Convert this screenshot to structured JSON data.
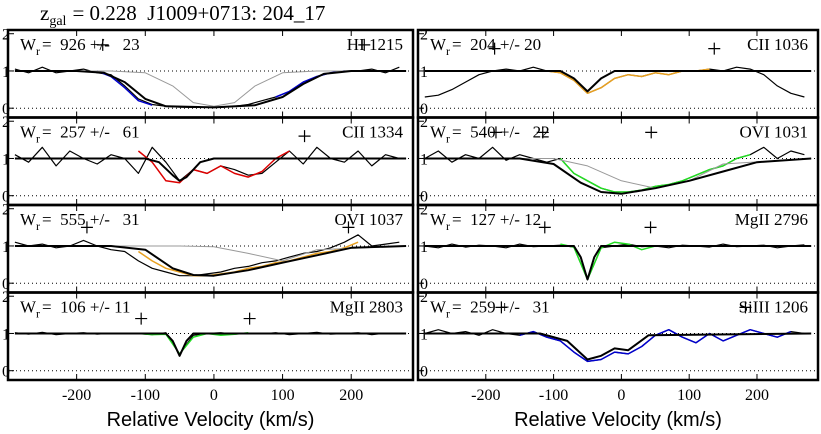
{
  "title_main": "z",
  "title_sub": "gal",
  "title_rest": "= 0.228  J1009+0713: 204_17",
  "velocity": [
    -290,
    -270,
    -250,
    -230,
    -210,
    -190,
    -170,
    -150,
    -130,
    -110,
    -90,
    -70,
    -50,
    -30,
    -10,
    10,
    30,
    50,
    70,
    90,
    110,
    130,
    150,
    170,
    190,
    210,
    230,
    250,
    270
  ],
  "chart_data": [
    {
      "type": "line",
      "label_main": "W",
      "label_sub": "r",
      "label_rest": "=  926 +/-   23",
      "ion": "HI 1215",
      "xlim": [
        -300,
        290
      ],
      "ylim": [
        -0.25,
        2.1
      ],
      "xticks": [
        -200,
        -100,
        0,
        100,
        200
      ],
      "yticks": [
        0,
        1,
        2
      ],
      "ref_lines": [
        0,
        1
      ],
      "spectrum": [
        1.05,
        0.95,
        1.1,
        0.95,
        1.0,
        1.05,
        0.95,
        0.9,
        0.6,
        0.25,
        0.1,
        0.05,
        0.03,
        0.02,
        0.03,
        0.02,
        0.05,
        0.1,
        0.2,
        0.3,
        0.45,
        0.7,
        0.85,
        0.95,
        1.0,
        1.0,
        1.05,
        0.95,
        1.1
      ],
      "highlight": {
        "color": "#0000cc",
        "x": [
          -170,
          -150,
          -130,
          -110,
          -90,
          0,
          90,
          110,
          130,
          150,
          170,
          190
        ],
        "y": [
          1.0,
          0.85,
          0.55,
          0.2,
          0.08,
          null,
          0.3,
          0.45,
          0.7,
          0.85,
          0.95,
          1.0
        ]
      },
      "fit": {
        "x": [
          -290,
          -200,
          -160,
          -130,
          -100,
          -70,
          0,
          60,
          100,
          130,
          160,
          200,
          280
        ],
        "y": [
          1,
          1,
          0.95,
          0.7,
          0.25,
          0.05,
          0.02,
          0.08,
          0.3,
          0.65,
          0.92,
          1,
          1
        ]
      },
      "component": {
        "x": [
          -290,
          -150,
          -100,
          -60,
          -30,
          0,
          30,
          60,
          100,
          150,
          280
        ],
        "y": [
          1,
          1,
          0.95,
          0.6,
          0.15,
          0.05,
          0.15,
          0.6,
          0.95,
          1,
          1
        ]
      },
      "markers": {
        "x": [
          -162,
          219
        ],
        "y": [
          1.7,
          1.7
        ]
      }
    },
    {
      "type": "line",
      "label_main": "W",
      "label_sub": "r",
      "label_rest": "=  204 +/- 20",
      "ion": "CII 1036",
      "xlim": [
        -300,
        290
      ],
      "ylim": [
        -0.25,
        2.1
      ],
      "xticks": [
        -200,
        -100,
        0,
        100,
        200
      ],
      "yticks": [
        0,
        1,
        2
      ],
      "ref_lines": [
        0,
        1
      ],
      "spectrum": [
        0.3,
        0.35,
        0.5,
        0.7,
        0.9,
        1.0,
        1.05,
        1.0,
        1.1,
        1.0,
        0.95,
        0.75,
        0.4,
        0.55,
        0.8,
        0.9,
        0.85,
        0.95,
        0.9,
        1.0,
        1.0,
        1.05,
        1.0,
        1.1,
        1.05,
        0.9,
        0.6,
        0.4,
        0.3
      ],
      "highlight": {
        "color": "#e8a020",
        "x": [
          -110,
          -90,
          -70,
          -50,
          -30,
          -10,
          10,
          30,
          50,
          70,
          90,
          110,
          130
        ],
        "y": [
          1.0,
          0.95,
          0.75,
          0.4,
          0.55,
          0.8,
          0.9,
          0.85,
          0.95,
          0.9,
          1.0,
          1.0,
          1.05
        ]
      },
      "fit": {
        "x": [
          -290,
          -90,
          -70,
          -50,
          -30,
          -10,
          280
        ],
        "y": [
          1,
          1,
          0.8,
          0.45,
          0.8,
          1,
          1
        ]
      },
      "markers": {
        "x": [
          -187,
          137
        ],
        "y": [
          1.6,
          1.6
        ]
      }
    },
    {
      "type": "line",
      "label_main": "W",
      "label_sub": "r",
      "label_rest": "=  257 +/-   61",
      "ion": "CII 1334",
      "xlim": [
        -300,
        290
      ],
      "ylim": [
        -0.25,
        2.1
      ],
      "xticks": [
        -200,
        -100,
        0,
        100,
        200
      ],
      "yticks": [
        0,
        1,
        2
      ],
      "ref_lines": [
        0,
        1
      ],
      "spectrum": [
        1.1,
        0.9,
        1.3,
        0.8,
        1.2,
        1.0,
        0.85,
        1.1,
        1.0,
        0.6,
        1.3,
        0.9,
        0.4,
        0.7,
        0.6,
        0.8,
        0.7,
        0.55,
        0.6,
        0.9,
        1.2,
        0.85,
        1.3,
        1.0,
        0.9,
        1.2,
        0.8,
        1.1,
        1.0
      ],
      "highlight": {
        "color": "#dd0000",
        "x": [
          -110,
          -90,
          -70,
          -50,
          -30,
          -10,
          10,
          30,
          50,
          70,
          90,
          110
        ],
        "y": [
          1.2,
          0.9,
          0.4,
          0.35,
          0.7,
          0.6,
          0.8,
          0.6,
          0.5,
          0.65,
          1.0,
          1.2
        ]
      },
      "fit": {
        "x": [
          -290,
          -100,
          -80,
          -60,
          -50,
          -40,
          -20,
          0,
          280
        ],
        "y": [
          1,
          1,
          0.9,
          0.55,
          0.4,
          0.5,
          0.9,
          1,
          1
        ]
      },
      "markers": {
        "x": [
          132
        ],
        "y": [
          1.6
        ]
      }
    },
    {
      "type": "line",
      "label_main": "W",
      "label_sub": "r",
      "label_rest": "=  540 +/-   22",
      "ion": "OVI 1031",
      "xlim": [
        -300,
        290
      ],
      "ylim": [
        -0.25,
        2.1
      ],
      "xticks": [
        -200,
        -100,
        0,
        100,
        200
      ],
      "yticks": [
        0,
        1,
        2
      ],
      "ref_lines": [
        0,
        1
      ],
      "spectrum": [
        1.0,
        1.2,
        0.9,
        1.1,
        1.0,
        1.3,
        0.95,
        1.1,
        1.0,
        0.9,
        1.0,
        0.6,
        0.4,
        0.2,
        0.1,
        0.1,
        0.15,
        0.25,
        0.3,
        0.4,
        0.55,
        0.7,
        0.8,
        1.0,
        1.1,
        1.3,
        1.0,
        1.2,
        1.1
      ],
      "highlight": {
        "color": "#22dd22",
        "x": [
          -90,
          -70,
          -50,
          -30,
          -10,
          10,
          30,
          50,
          70,
          90,
          110,
          130,
          150,
          170,
          190
        ],
        "y": [
          1.0,
          0.6,
          0.4,
          0.2,
          0.1,
          0.1,
          0.15,
          0.25,
          0.3,
          0.4,
          0.55,
          0.7,
          0.8,
          1.0,
          1.1
        ]
      },
      "fit": {
        "x": [
          -290,
          -150,
          -100,
          -60,
          -30,
          0,
          50,
          100,
          150,
          200,
          280
        ],
        "y": [
          1,
          1,
          0.85,
          0.35,
          0.1,
          0.05,
          0.2,
          0.4,
          0.65,
          0.9,
          1
        ]
      },
      "component": {
        "x": [
          -290,
          -100,
          -50,
          0,
          50,
          100,
          150,
          280
        ],
        "y": [
          1,
          1,
          0.8,
          0.4,
          0.2,
          0.4,
          0.85,
          1
        ]
      },
      "markers": {
        "x": [
          -185,
          -116,
          44
        ],
        "y": [
          1.7,
          1.7,
          1.7
        ]
      }
    },
    {
      "type": "line",
      "label_main": "W",
      "label_sub": "r",
      "label_rest": "=  555 +/-   31",
      "ion": "OVI 1037",
      "xlim": [
        -300,
        290
      ],
      "ylim": [
        -0.25,
        2.1
      ],
      "xticks": [
        -200,
        -100,
        0,
        100,
        200
      ],
      "yticks": [
        0,
        1,
        2
      ],
      "ref_lines": [
        0,
        1
      ],
      "spectrum": [
        1.1,
        1.0,
        1.05,
        0.95,
        1.0,
        1.15,
        1.0,
        0.9,
        0.85,
        0.6,
        0.4,
        0.3,
        0.2,
        0.2,
        0.25,
        0.3,
        0.4,
        0.45,
        0.55,
        0.6,
        0.7,
        0.8,
        0.85,
        0.95,
        1.1,
        1.3,
        1.0,
        1.05,
        1.1
      ],
      "highlight": {
        "color": "#e8a020",
        "x": [
          -110,
          -90,
          -70,
          -50,
          -30,
          -10,
          10,
          30,
          50,
          70,
          90,
          110,
          130,
          150,
          170,
          190,
          210
        ],
        "y": [
          0.85,
          0.6,
          0.4,
          0.3,
          0.2,
          0.2,
          0.25,
          0.3,
          0.4,
          0.45,
          0.55,
          0.6,
          0.7,
          0.8,
          0.85,
          0.95,
          1.1
        ]
      },
      "fit": {
        "x": [
          -290,
          -150,
          -100,
          -60,
          -30,
          0,
          50,
          100,
          150,
          200,
          280
        ],
        "y": [
          1,
          1,
          0.9,
          0.4,
          0.22,
          0.2,
          0.35,
          0.55,
          0.75,
          0.95,
          1
        ]
      },
      "component": {
        "x": [
          -290,
          -50,
          0,
          50,
          100,
          150,
          280
        ],
        "y": [
          1,
          1,
          0.98,
          0.8,
          0.6,
          0.9,
          1
        ]
      },
      "markers": {
        "x": [
          -185,
          196
        ],
        "y": [
          1.5,
          1.5
        ]
      }
    },
    {
      "type": "line",
      "label_main": "W",
      "label_sub": "r",
      "label_rest": "=  127 +/- 12",
      "ion": "MgII 2796",
      "xlim": [
        -300,
        290
      ],
      "ylim": [
        -0.25,
        2.1
      ],
      "xticks": [
        -200,
        -100,
        0,
        100,
        200
      ],
      "yticks": [
        0,
        1,
        2
      ],
      "ref_lines": [
        0,
        1
      ],
      "spectrum": [
        1.0,
        0.95,
        1.05,
        0.97,
        1.02,
        1.0,
        0.95,
        1.05,
        0.98,
        1.0,
        1.02,
        0.97,
        0.1,
        0.95,
        1.0,
        1.05,
        0.98,
        1.0,
        0.95,
        1.02,
        1.0,
        0.97,
        1.05,
        0.98,
        1.0,
        1.02,
        0.95,
        1.0,
        1.03
      ],
      "highlight": {
        "color": "#22dd22",
        "x": [
          -90,
          -70,
          -50,
          -30,
          -10,
          10,
          30,
          50
        ],
        "y": [
          1.05,
          0.97,
          0.1,
          0.95,
          1.1,
          1.05,
          0.9,
          1.0
        ]
      },
      "fit": {
        "x": [
          -290,
          -70,
          -60,
          -50,
          -40,
          -30,
          280
        ],
        "y": [
          1,
          1,
          0.7,
          0.1,
          0.7,
          1,
          1
        ]
      },
      "markers": {
        "x": [
          -113,
          43
        ],
        "y": [
          1.5,
          1.5
        ]
      }
    },
    {
      "type": "line",
      "label_main": "W",
      "label_sub": "r",
      "label_rest": "=  106 +/- 11",
      "ion": "MgII 2803",
      "xlim": [
        -300,
        290
      ],
      "ylim": [
        -0.25,
        2.1
      ],
      "xticks": [
        -200,
        -100,
        0,
        100,
        200
      ],
      "yticks": [
        0,
        1,
        2
      ],
      "ref_lines": [
        0,
        1
      ],
      "xlabel": "Relative Velocity (km/s)",
      "spectrum": [
        1.02,
        0.98,
        1.03,
        0.97,
        1.0,
        1.02,
        0.98,
        1.01,
        0.99,
        1.0,
        0.97,
        1.02,
        0.45,
        0.95,
        1.0,
        1.02,
        0.98,
        1.01,
        0.99,
        1.02,
        0.97,
        1.0,
        1.03,
        0.98,
        1.0,
        1.02,
        0.97,
        1.01,
        1.0
      ],
      "highlight": {
        "color": "#22dd22",
        "x": [
          -110,
          -90,
          -70,
          -50,
          -30,
          -10,
          10,
          30,
          50
        ],
        "y": [
          1.0,
          0.97,
          0.98,
          0.45,
          0.9,
          1.0,
          0.95,
          0.98,
          1.02
        ]
      },
      "fit": {
        "x": [
          -290,
          -70,
          -60,
          -50,
          -40,
          -30,
          280
        ],
        "y": [
          1,
          1,
          0.8,
          0.4,
          0.8,
          1,
          1
        ]
      },
      "markers": {
        "x": [
          -106,
          52
        ],
        "y": [
          1.4,
          1.4
        ]
      }
    },
    {
      "type": "line",
      "label_main": "W",
      "label_sub": "r",
      "label_rest": "=  259 +/-   31",
      "ion": "SiIII 1206",
      "xlim": [
        -300,
        290
      ],
      "ylim": [
        -0.25,
        2.1
      ],
      "xticks": [
        -200,
        -100,
        0,
        100,
        200
      ],
      "yticks": [
        0,
        1,
        2
      ],
      "ref_lines": [
        0,
        1
      ],
      "xlabel": "Relative Velocity (km/s)",
      "spectrum": [
        1.0,
        1.1,
        1.0,
        1.05,
        0.95,
        1.1,
        1.0,
        0.95,
        1.05,
        0.9,
        0.8,
        0.5,
        0.25,
        0.3,
        0.5,
        0.45,
        0.65,
        0.95,
        1.1,
        0.9,
        0.75,
        1.0,
        0.8,
        0.95,
        1.1,
        1.0,
        0.9,
        1.05,
        1.0
      ],
      "highlight": {
        "color": "#0000cc",
        "x": [
          -150,
          -130,
          -110,
          -90,
          -70,
          -50,
          -30,
          -10,
          10,
          30,
          50,
          70,
          90,
          110,
          130,
          150,
          170,
          190,
          210,
          230,
          250
        ],
        "y": [
          0.95,
          1.05,
          0.9,
          0.8,
          0.5,
          0.25,
          0.3,
          0.5,
          0.45,
          0.65,
          0.95,
          1.1,
          0.9,
          0.75,
          1.0,
          0.8,
          0.95,
          1.1,
          1.0,
          0.9,
          1.05
        ]
      },
      "fit": {
        "x": [
          -290,
          -120,
          -80,
          -50,
          -30,
          -10,
          10,
          40,
          280
        ],
        "y": [
          1,
          1,
          0.8,
          0.3,
          0.4,
          0.6,
          0.55,
          0.95,
          1
        ]
      },
      "markers": {
        "x": [
          -177,
          183
        ],
        "y": [
          1.7,
          1.7
        ]
      }
    }
  ]
}
